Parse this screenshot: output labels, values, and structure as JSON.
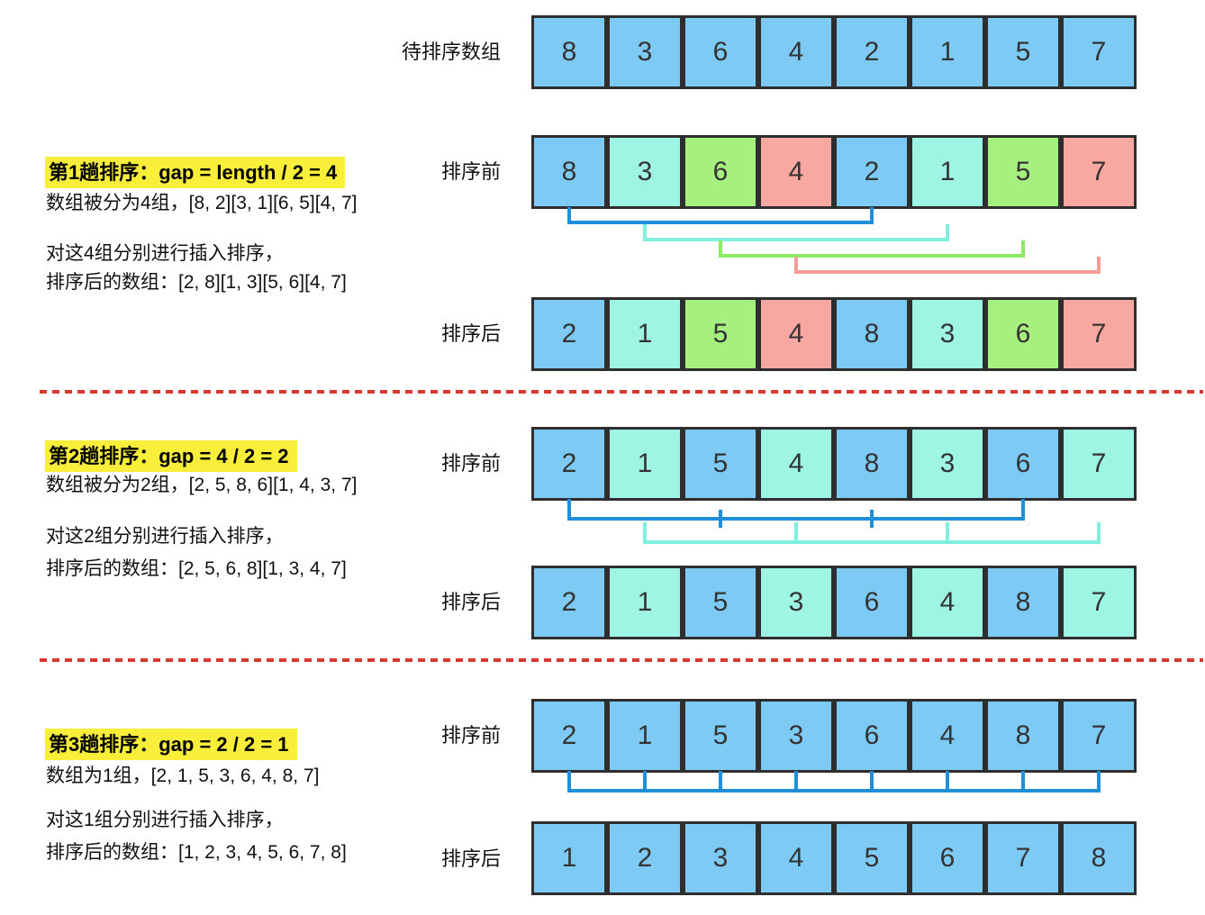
{
  "palette": {
    "cell_fill": {
      "blue": "#7dcbf5",
      "cyan": "#9ef5e4",
      "green": "#a6f080",
      "pink": "#f8a8a1"
    },
    "bracket_line": {
      "blue": "#1e8fd8",
      "cyan": "#7ff0de",
      "green": "#8deb61",
      "pink": "#f59c94"
    },
    "cell_border": "#2e2e2e",
    "cell_text": "#333333",
    "divider_red": "#d8392e",
    "highlight_yellow": "#f9ee3a"
  },
  "row_labels": {
    "initial": "待排序数组",
    "before": "排序前",
    "after": "排序后"
  },
  "initial_row": {
    "values": [
      8,
      3,
      6,
      4,
      2,
      1,
      5,
      7
    ],
    "colors": [
      "blue",
      "blue",
      "blue",
      "blue",
      "blue",
      "blue",
      "blue",
      "blue"
    ]
  },
  "sections": [
    {
      "title": "第1趟排序：gap = length / 2 = 4",
      "line1": "数组被分为4组，[8, 2][3, 1][6, 5][4, 7]",
      "line2": "对这4组分别进行插入排序，",
      "line3": "排序后的数组：[2, 8][1, 3][5, 6][4, 7]",
      "before": {
        "values": [
          8,
          3,
          6,
          4,
          2,
          1,
          5,
          7
        ],
        "colors": [
          "blue",
          "cyan",
          "green",
          "pink",
          "blue",
          "cyan",
          "green",
          "pink"
        ]
      },
      "after": {
        "values": [
          2,
          1,
          5,
          4,
          8,
          3,
          6,
          7
        ],
        "colors": [
          "blue",
          "cyan",
          "green",
          "pink",
          "blue",
          "cyan",
          "green",
          "pink"
        ]
      },
      "brackets": [
        {
          "color": "blue",
          "ends": [
            0,
            4
          ],
          "ticks": [],
          "tick_style": "full"
        },
        {
          "color": "cyan",
          "ends": [
            1,
            5
          ],
          "ticks": [],
          "tick_style": "full"
        },
        {
          "color": "green",
          "ends": [
            2,
            6
          ],
          "ticks": [],
          "tick_style": "full"
        },
        {
          "color": "pink",
          "ends": [
            3,
            7
          ],
          "ticks": [],
          "tick_style": "full"
        }
      ]
    },
    {
      "title": "第2趟排序：gap = 4 / 2 = 2",
      "line1": "数组被分为2组，[2, 5, 8, 6][1, 4, 3, 7]",
      "line2": "对这2组分别进行插入排序，",
      "line3": "排序后的数组：[2, 5, 6, 8][1, 3, 4, 7]",
      "before": {
        "values": [
          2,
          1,
          5,
          4,
          8,
          3,
          6,
          7
        ],
        "colors": [
          "blue",
          "cyan",
          "blue",
          "cyan",
          "blue",
          "cyan",
          "blue",
          "cyan"
        ]
      },
      "after": {
        "values": [
          2,
          1,
          5,
          3,
          6,
          4,
          8,
          7
        ],
        "colors": [
          "blue",
          "cyan",
          "blue",
          "cyan",
          "blue",
          "cyan",
          "blue",
          "cyan"
        ]
      },
      "brackets": [
        {
          "color": "blue",
          "ends": [
            0,
            6
          ],
          "ticks": [
            2,
            4
          ],
          "tick_style": "cross"
        },
        {
          "color": "cyan",
          "ends": [
            1,
            7
          ],
          "ticks": [
            3,
            5
          ],
          "tick_style": "full"
        }
      ]
    },
    {
      "title": "第3趟排序：gap = 2 / 2 = 1",
      "line1": "数组为1组，[2, 1, 5, 3, 6, 4, 8, 7]",
      "line2": "对这1组分别进行插入排序，",
      "line3": "排序后的数组：[1, 2, 3, 4, 5, 6, 7, 8]",
      "before": {
        "values": [
          2,
          1,
          5,
          3,
          6,
          4,
          8,
          7
        ],
        "colors": [
          "blue",
          "blue",
          "blue",
          "blue",
          "blue",
          "blue",
          "blue",
          "blue"
        ]
      },
      "after": {
        "values": [
          1,
          2,
          3,
          4,
          5,
          6,
          7,
          8
        ],
        "colors": [
          "blue",
          "blue",
          "blue",
          "blue",
          "blue",
          "blue",
          "blue",
          "blue"
        ]
      },
      "brackets": [
        {
          "color": "blue",
          "ends": [
            0,
            7
          ],
          "ticks": [
            1,
            2,
            3,
            4,
            5,
            6
          ],
          "tick_style": "full"
        }
      ]
    }
  ]
}
